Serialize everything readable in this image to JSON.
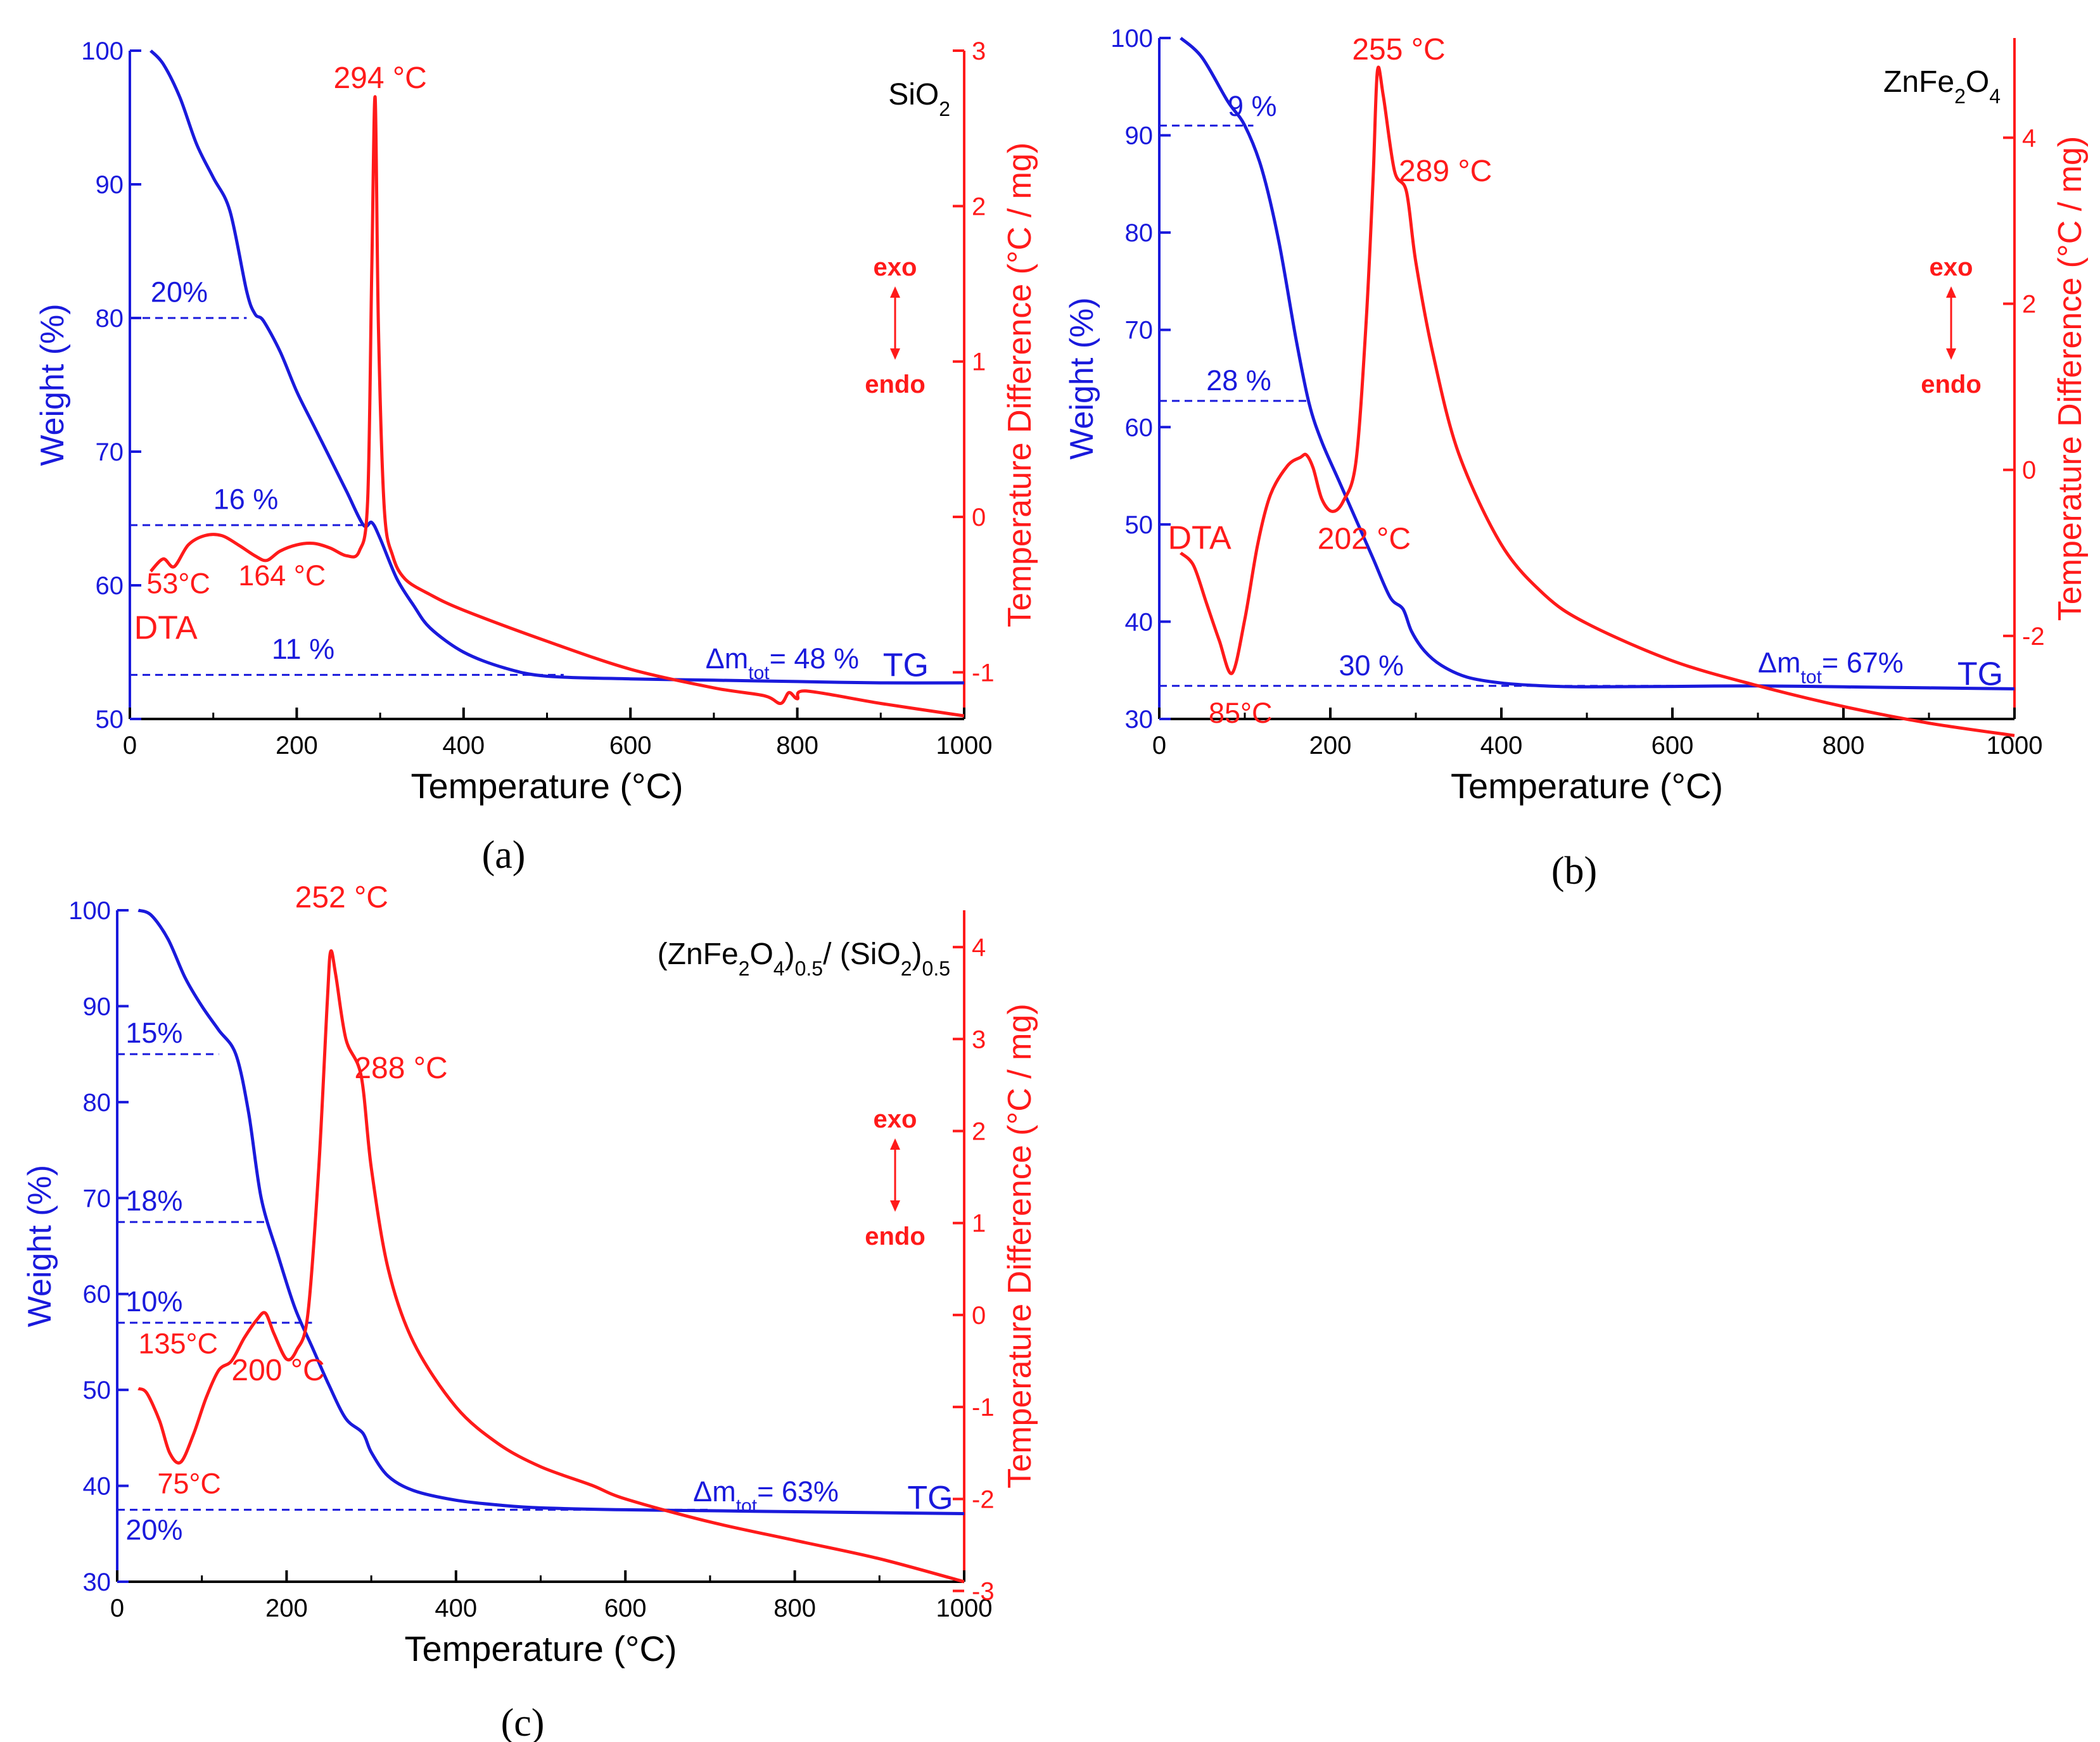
{
  "colors": {
    "tg": "#1a1adc",
    "dta": "#ff1a1a",
    "axis_tg": "#1a1adc",
    "axis_dta": "#ff1a1a",
    "text": "#000000"
  },
  "common": {
    "xlabel": "Temperature (°C)",
    "ylabel_left": "Weight (%)",
    "ylabel_right": "Temperature Difference (°C / mg)",
    "exo_label": "exo",
    "endo_label": "endo",
    "tg_label": "TG",
    "dta_label": "DTA"
  },
  "chart_data": [
    {
      "panel": "(a)",
      "type": "line",
      "title": "SiO2",
      "title_parts": [
        [
          "SiO",
          "n"
        ],
        [
          "2",
          "sub"
        ]
      ],
      "xlabel": "Temperature (°C)",
      "ylabel": "Weight (%)",
      "y2label": "Temperature Difference (°C / mg)",
      "xlim": [
        0,
        1000
      ],
      "ylim": [
        50,
        100
      ],
      "y2lim": [
        -1.3,
        3
      ],
      "xticks": [
        0,
        200,
        400,
        600,
        800,
        1000
      ],
      "yticks": [
        50,
        60,
        70,
        80,
        90,
        100
      ],
      "y2ticks": [
        -1,
        0,
        1,
        2,
        3
      ],
      "series": [
        {
          "name": "TG",
          "axis": "left",
          "x": [
            25,
            40,
            60,
            80,
            100,
            120,
            140,
            150,
            160,
            180,
            200,
            220,
            240,
            260,
            280,
            290,
            300,
            320,
            340,
            360,
            400,
            450,
            500,
            600,
            700,
            800,
            900,
            1000
          ],
          "y": [
            100,
            99,
            96.5,
            93,
            90.5,
            88,
            82,
            80.3,
            79.8,
            77.5,
            74.5,
            72,
            69.5,
            67,
            64.5,
            64.7,
            63.5,
            60.5,
            58.5,
            56.8,
            55,
            53.8,
            53.2,
            53.0,
            52.9,
            52.8,
            52.7,
            52.7
          ]
        },
        {
          "name": "DTA",
          "axis": "right",
          "x": [
            25,
            40,
            53,
            70,
            90,
            110,
            130,
            150,
            164,
            180,
            200,
            220,
            240,
            260,
            275,
            285,
            290,
            294,
            298,
            305,
            315,
            330,
            360,
            400,
            500,
            600,
            700,
            760,
            780,
            790,
            800,
            810,
            900,
            1000
          ],
          "y": [
            -0.35,
            -0.27,
            -0.32,
            -0.18,
            -0.12,
            -0.12,
            -0.18,
            -0.25,
            -0.28,
            -0.22,
            -0.18,
            -0.17,
            -0.2,
            -0.25,
            -0.22,
            0.1,
            1.6,
            2.7,
            1.2,
            0.05,
            -0.25,
            -0.4,
            -0.5,
            -0.6,
            -0.8,
            -0.98,
            -1.1,
            -1.15,
            -1.2,
            -1.13,
            -1.17,
            -1.12,
            -1.2,
            -1.28
          ]
        }
      ],
      "guides": [
        {
          "y": 80,
          "x1": 0,
          "x2": 140,
          "label": "20%",
          "label_x": 25,
          "label_y": 81.2
        },
        {
          "y": 64.5,
          "x1": 0,
          "x2": 285,
          "label": "16 %",
          "label_x": 100,
          "label_y": 65.7
        },
        {
          "y": 53.3,
          "x1": 0,
          "x2": 520,
          "label": "11 %",
          "label_x": 170,
          "label_y": 54.5
        }
      ],
      "annotations": [
        {
          "text": "294 °C",
          "x": 300,
          "y": 97.2,
          "color": "dta",
          "size": 48,
          "anchor": "middle"
        },
        {
          "text": "53°C",
          "x": 20,
          "y": 59.4,
          "color": "dta",
          "size": 45,
          "anchor": "start"
        },
        {
          "text": "164 °C",
          "x": 130,
          "y": 60.0,
          "color": "dta",
          "size": 45,
          "anchor": "start"
        },
        {
          "text": "DTA",
          "x": 5,
          "y": 56.0,
          "color": "dta",
          "size": 52,
          "anchor": "start"
        },
        {
          "text": "TG",
          "x": 930,
          "y": 53.2,
          "color": "tg",
          "size": 52,
          "anchor": "middle"
        }
      ],
      "mass_loss": {
        "prefix": "Δm",
        "sub": "tot",
        "value": "= 48 %",
        "x": 690,
        "y": 53.8
      }
    },
    {
      "panel": "(b)",
      "type": "line",
      "title": "ZnFe2O4",
      "title_parts": [
        [
          "ZnFe",
          "n"
        ],
        [
          "2",
          "sub"
        ],
        [
          "O",
          "n"
        ],
        [
          "4",
          "sub"
        ]
      ],
      "xlabel": "Temperature (°C)",
      "ylabel": "Weight (%)",
      "y2label": "Temperature Difference (°C / mg)",
      "xlim": [
        0,
        1000
      ],
      "ylim": [
        30,
        100
      ],
      "y2lim": [
        -3,
        5.2
      ],
      "xticks": [
        0,
        200,
        400,
        600,
        800,
        1000
      ],
      "yticks": [
        30,
        40,
        50,
        60,
        70,
        80,
        90,
        100
      ],
      "y2ticks": [
        -2,
        0,
        2,
        4
      ],
      "series": [
        {
          "name": "TG",
          "axis": "left",
          "x": [
            25,
            50,
            80,
            100,
            120,
            140,
            160,
            175,
            190,
            210,
            230,
            250,
            270,
            285,
            295,
            310,
            330,
            360,
            400,
            450,
            500,
            600,
            700,
            800,
            900,
            1000
          ],
          "y": [
            100,
            98,
            93.5,
            91,
            86.5,
            79,
            69,
            62.5,
            58.5,
            54.5,
            50.5,
            46.5,
            42.5,
            41.3,
            39,
            37,
            35.5,
            34.3,
            33.7,
            33.4,
            33.3,
            33.35,
            33.4,
            33.3,
            33.2,
            33.1
          ]
        },
        {
          "name": "DTA",
          "axis": "right",
          "x": [
            25,
            40,
            55,
            70,
            85,
            100,
            115,
            130,
            150,
            165,
            172,
            180,
            190,
            202,
            215,
            230,
            242,
            250,
            255,
            262,
            275,
            289,
            300,
            320,
            350,
            400,
            450,
            500,
            600,
            700,
            800,
            900,
            1000
          ],
          "y": [
            -1.0,
            -1.15,
            -1.6,
            -2.05,
            -2.45,
            -1.8,
            -0.9,
            -0.3,
            0.05,
            0.15,
            0.18,
            0.02,
            -0.35,
            -0.5,
            -0.38,
            0.1,
            1.8,
            3.5,
            4.8,
            4.5,
            3.6,
            3.35,
            2.5,
            1.4,
            0.2,
            -0.9,
            -1.5,
            -1.85,
            -2.3,
            -2.6,
            -2.85,
            -3.05,
            -3.2
          ]
        }
      ],
      "guides": [
        {
          "y": 91,
          "x1": 0,
          "x2": 110,
          "label": "9 %",
          "label_x": 80,
          "label_y": 92.0
        },
        {
          "y": 62.7,
          "x1": 0,
          "x2": 175,
          "label": "28 %",
          "label_x": 55,
          "label_y": 63.8
        },
        {
          "y": 33.4,
          "x1": 0,
          "x2": 700,
          "label": "30 %",
          "label_x": 210,
          "label_y": 34.5
        }
      ],
      "annotations": [
        {
          "text": "255 °C",
          "x": 280,
          "y": 97.8,
          "color": "dta",
          "size": 48,
          "anchor": "middle"
        },
        {
          "text": "289 °C",
          "x": 280,
          "y": 85.3,
          "color": "dta",
          "size": 48,
          "anchor": "start"
        },
        {
          "text": "202 °C",
          "x": 185,
          "y": 47.5,
          "color": "dta",
          "size": 48,
          "anchor": "start"
        },
        {
          "text": "DTA",
          "x": 10,
          "y": 47.5,
          "color": "dta",
          "size": 52,
          "anchor": "start"
        },
        {
          "text": "85°C",
          "x": 95,
          "y": 29.6,
          "color": "dta",
          "size": 45,
          "anchor": "middle"
        },
        {
          "text": "TG",
          "x": 960,
          "y": 33.5,
          "color": "tg",
          "size": 52,
          "anchor": "middle"
        }
      ],
      "mass_loss": {
        "prefix": "Δm",
        "sub": "tot",
        "value": "= 67%",
        "x": 700,
        "y": 34.8
      }
    },
    {
      "panel": "(c)",
      "type": "line",
      "title": "(ZnFe2O4)0.5/ (SiO2)0.5",
      "title_parts": [
        [
          "(ZnFe",
          "n"
        ],
        [
          "2",
          "sub"
        ],
        [
          "O",
          "n"
        ],
        [
          "4",
          "sub"
        ],
        [
          ")",
          "n"
        ],
        [
          "0.5",
          "sub"
        ],
        [
          "/ (SiO",
          "n"
        ],
        [
          "2",
          "sub"
        ],
        [
          ")",
          "n"
        ],
        [
          "0.5",
          "sub"
        ]
      ],
      "xlabel": "Temperature (°C)",
      "ylabel": "Weight (%)",
      "y2label": "Temperature Difference (°C / mg)",
      "xlim": [
        0,
        1000
      ],
      "ylim": [
        30,
        100
      ],
      "y2lim": [
        -2.9,
        4.4
      ],
      "xticks": [
        0,
        200,
        400,
        600,
        800,
        1000
      ],
      "yticks": [
        30,
        40,
        50,
        60,
        70,
        80,
        90,
        100
      ],
      "y2ticks": [
        -3,
        -2,
        -1,
        0,
        1,
        2,
        3,
        4
      ],
      "series": [
        {
          "name": "TG",
          "axis": "left",
          "x": [
            25,
            40,
            60,
            80,
            100,
            120,
            140,
            155,
            170,
            190,
            210,
            230,
            250,
            270,
            290,
            300,
            320,
            350,
            400,
            450,
            500,
            600,
            700,
            800,
            900,
            1000
          ],
          "y": [
            100,
            99.5,
            97,
            93,
            90,
            87.5,
            85,
            79,
            70,
            64,
            58.5,
            54.5,
            50.5,
            47,
            45.5,
            43.5,
            41,
            39.5,
            38.5,
            38,
            37.7,
            37.5,
            37.4,
            37.3,
            37.2,
            37.1
          ]
        },
        {
          "name": "DTA",
          "axis": "right",
          "x": [
            25,
            35,
            50,
            62,
            75,
            90,
            105,
            120,
            135,
            150,
            165,
            175,
            185,
            200,
            212,
            225,
            238,
            248,
            252,
            258,
            270,
            288,
            300,
            320,
            350,
            400,
            450,
            500,
            560,
            600,
            700,
            800,
            900,
            1000
          ],
          "y": [
            -0.8,
            -0.85,
            -1.15,
            -1.5,
            -1.6,
            -1.3,
            -0.9,
            -0.6,
            -0.5,
            -0.25,
            -0.05,
            0.02,
            -0.2,
            -0.48,
            -0.38,
            0.0,
            1.6,
            3.4,
            3.95,
            3.7,
            3.0,
            2.6,
            1.6,
            0.5,
            -0.3,
            -1.0,
            -1.4,
            -1.65,
            -1.85,
            -2.0,
            -2.25,
            -2.45,
            -2.65,
            -2.9
          ]
        }
      ],
      "guides": [
        {
          "y": 85,
          "x1": 0,
          "x2": 120,
          "label": "15%",
          "label_x": 10,
          "label_y": 86.2
        },
        {
          "y": 67.5,
          "x1": 0,
          "x2": 175,
          "label": "18%",
          "label_x": 10,
          "label_y": 68.7
        },
        {
          "y": 57,
          "x1": 0,
          "x2": 230,
          "label": "10%",
          "label_x": 10,
          "label_y": 58.2
        },
        {
          "y": 37.5,
          "x1": 0,
          "x2": 700,
          "label": "20%",
          "label_x": 10,
          "label_y": 34.4
        }
      ],
      "annotations": [
        {
          "text": "252 °C",
          "x": 265,
          "y": 100.3,
          "color": "dta",
          "size": 48,
          "anchor": "middle"
        },
        {
          "text": "288 °C",
          "x": 280,
          "y": 82.5,
          "color": "dta",
          "size": 48,
          "anchor": "start"
        },
        {
          "text": "135°C",
          "x": 25,
          "y": 53.8,
          "color": "dta",
          "size": 45,
          "anchor": "start"
        },
        {
          "text": "200 °C",
          "x": 190,
          "y": 51.0,
          "color": "dta",
          "size": 48,
          "anchor": "middle"
        },
        {
          "text": "75°C",
          "x": 85,
          "y": 39.2,
          "color": "dta",
          "size": 45,
          "anchor": "middle"
        },
        {
          "text": "TG",
          "x": 960,
          "y": 37.6,
          "color": "tg",
          "size": 52,
          "anchor": "middle"
        }
      ],
      "mass_loss": {
        "prefix": "Δm",
        "sub": "tot",
        "value": "= 63%",
        "x": 680,
        "y": 38.4
      }
    }
  ]
}
